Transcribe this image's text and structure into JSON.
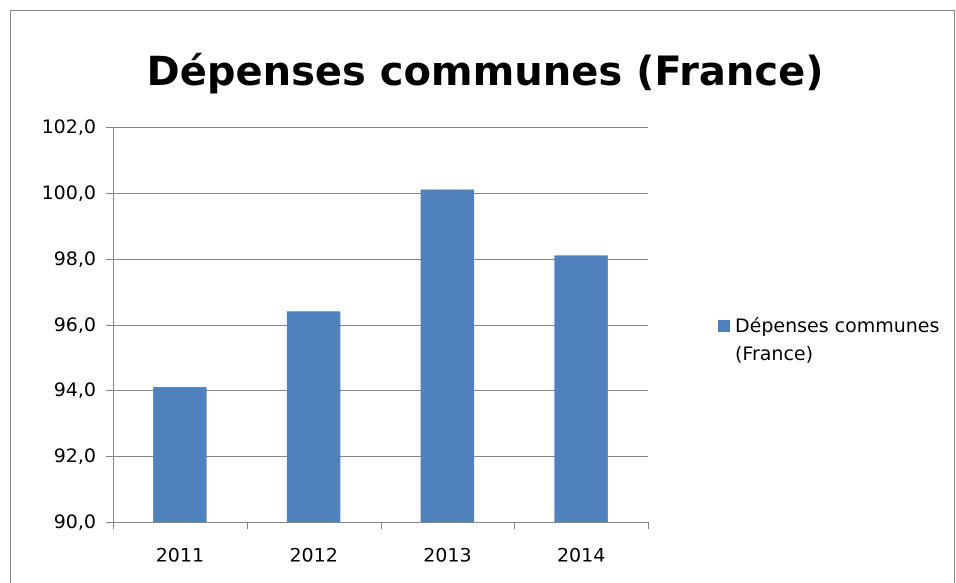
{
  "chart_data": {
    "type": "bar",
    "title": "Dépenses communes (France)",
    "categories": [
      "2011",
      "2012",
      "2013",
      "2014"
    ],
    "series": [
      {
        "name": "Dépenses communes (France)",
        "color": "#4f81bd",
        "values": [
          94.1,
          96.4,
          100.1,
          98.1
        ]
      }
    ],
    "ylim": [
      90,
      102
    ],
    "yticks": [
      {
        "value": 90,
        "label": "90,0"
      },
      {
        "value": 92,
        "label": "92,0"
      },
      {
        "value": 94,
        "label": "94,0"
      },
      {
        "value": 96,
        "label": "96,0"
      },
      {
        "value": 98,
        "label": "98,0"
      },
      {
        "value": 100,
        "label": "100,0"
      },
      {
        "value": 102,
        "label": "102,0"
      }
    ],
    "grid": true,
    "legend": "right"
  }
}
